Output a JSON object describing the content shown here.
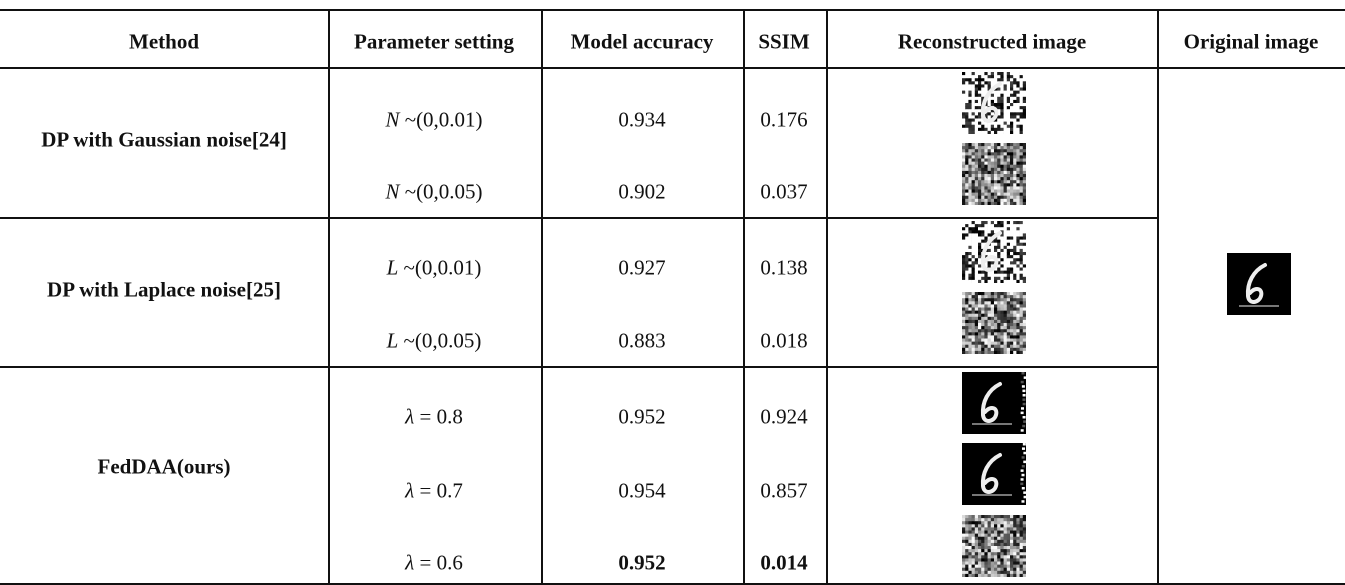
{
  "table": {
    "headers": [
      "Method",
      "Parameter setting",
      "Model accuracy",
      "SSIM",
      "Reconstructed image",
      "Original image"
    ],
    "groups": [
      {
        "method": "DP with Gaussian noise[24]",
        "rows": [
          {
            "param": {
              "symbol": "N",
              "rest": "~(0,0.01)"
            },
            "accuracy": "0.934",
            "ssim": "0.176"
          },
          {
            "param": {
              "symbol": "N",
              "rest": "~(0,0.05)"
            },
            "accuracy": "0.902",
            "ssim": "0.037"
          }
        ]
      },
      {
        "method": "DP with Laplace noise[25]",
        "rows": [
          {
            "param": {
              "symbol": "L",
              "rest": "~(0,0.01)"
            },
            "accuracy": "0.927",
            "ssim": "0.138"
          },
          {
            "param": {
              "symbol": "L",
              "rest": "~(0,0.05)"
            },
            "accuracy": "0.883",
            "ssim": "0.018"
          }
        ]
      },
      {
        "method": "FedDAA(ours)",
        "rows": [
          {
            "param": {
              "symbol": "λ",
              "rest": "= 0.8"
            },
            "accuracy": "0.952",
            "ssim": "0.924"
          },
          {
            "param": {
              "symbol": "λ",
              "rest": "= 0.7"
            },
            "accuracy": "0.954",
            "ssim": "0.857"
          },
          {
            "param": {
              "symbol": "λ",
              "rest": "= 0.6"
            },
            "accuracy": "0.952",
            "ssim": "0.014",
            "bold": true
          }
        ]
      }
    ]
  }
}
